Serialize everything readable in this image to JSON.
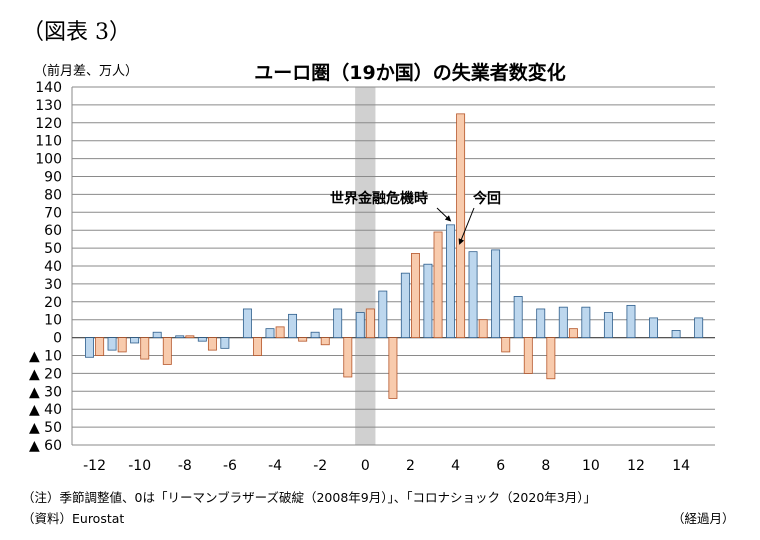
{
  "figure_label": "（図表 3）",
  "notes": {
    "note1": "（注）季節調整値、0は「リーマンブラザーズ破綻（2008年9月）」、「コロナショック（2020年3月）」",
    "note2": "（資料）Eurostat"
  },
  "chart_data": {
    "type": "bar",
    "title": "ユーロ圏（19か国）の失業者数変化",
    "ylabel": "（前月差、万人）",
    "xlabel": "（経過月）",
    "ylim": [
      -60,
      140
    ],
    "ytick_step": 10,
    "negative_prefix": "▲",
    "xlim": [
      -13,
      15.5
    ],
    "xticks": [
      -12,
      -10,
      -8,
      -6,
      -4,
      -2,
      0,
      2,
      4,
      6,
      8,
      10,
      12,
      14
    ],
    "xtick_labels": [
      "-12",
      "-10",
      "-8",
      "-6",
      "-4",
      "-2",
      "0",
      "2",
      "4",
      "6",
      "8",
      "10",
      "12",
      "14"
    ],
    "x": [
      -12,
      -11,
      -10,
      -9,
      -8,
      -7,
      -6,
      -5,
      -4,
      -3,
      -2,
      -1,
      0,
      1,
      2,
      3,
      4,
      5,
      6,
      7,
      8,
      9,
      10,
      11,
      12,
      13,
      14,
      15
    ],
    "series": [
      {
        "color": "#bdd7ee",
        "stroke": "#2e5e8c",
        "values": [
          -11,
          -7,
          -3,
          3,
          1,
          -2,
          -6,
          16,
          5,
          13,
          3,
          16,
          14,
          26,
          36,
          41,
          63,
          48,
          49,
          23,
          16,
          17,
          17,
          14,
          18,
          11,
          4,
          11
        ]
      },
      {
        "color": "#f8cbad",
        "stroke": "#b5562a",
        "values": [
          -10,
          -8,
          -12,
          -15,
          1,
          -7,
          0,
          -10,
          6,
          -2,
          -4,
          -22,
          16,
          -34,
          47,
          59,
          125,
          10,
          -8,
          -20,
          -23,
          5,
          0,
          0,
          0,
          0,
          0,
          0
        ]
      }
    ],
    "highlight_x": 0,
    "annotations": [
      {
        "text": "世界金融危機時",
        "target_x": 4,
        "target_y": 63
      },
      {
        "text": "今回",
        "target_x": 4,
        "target_y": 59
      }
    ],
    "grid": true,
    "legend": "none"
  }
}
